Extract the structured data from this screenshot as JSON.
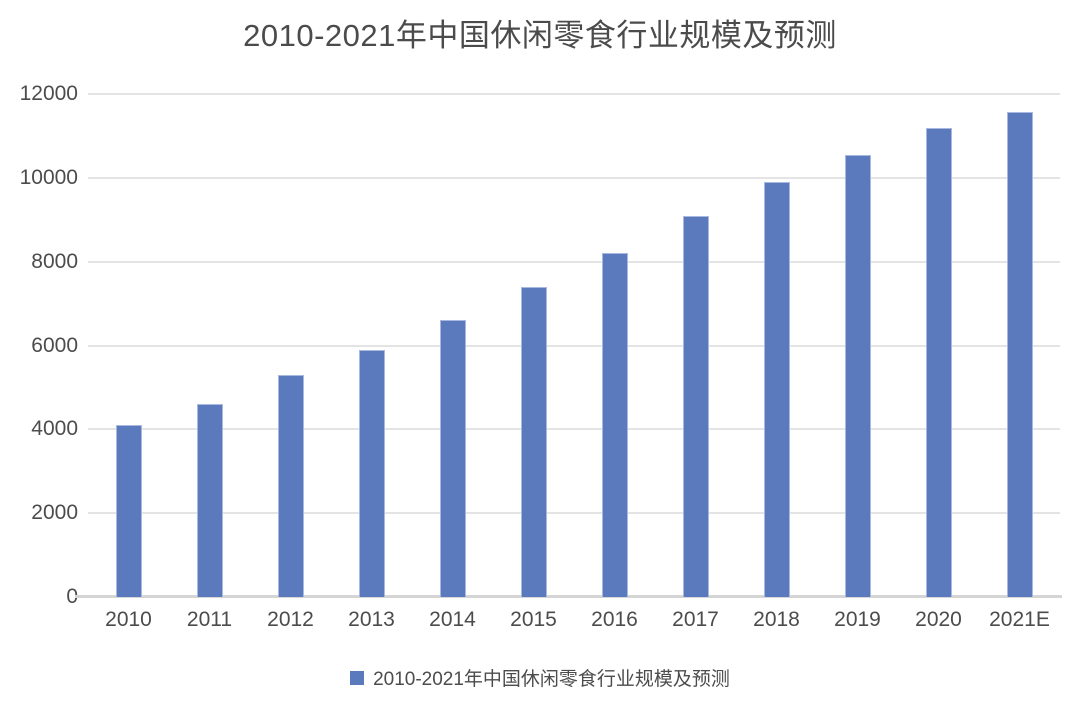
{
  "chart_data": {
    "type": "bar",
    "title": "2010-2021年中国休闲零食行业规模及预测",
    "series_name": "2010-2021年中国休闲零食行业规模及预测",
    "categories": [
      "2010",
      "2011",
      "2012",
      "2013",
      "2014",
      "2015",
      "2016",
      "2017",
      "2018",
      "2019",
      "2020",
      "2021E"
    ],
    "values": [
      4100,
      4600,
      5300,
      5900,
      6600,
      7400,
      8200,
      9100,
      9900,
      10556,
      11200,
      11562
    ],
    "xlabel": "",
    "ylabel": "",
    "ylim": [
      0,
      12000
    ],
    "y_ticks": [
      0,
      2000,
      4000,
      6000,
      8000,
      10000,
      12000
    ],
    "grid": true,
    "legend_position": "bottom",
    "bar_color": "#5b7abd",
    "bar_border_color": "#a9b8de",
    "gridline_color": "#e4e4e4",
    "axis_line_color": "#d5d5d5",
    "text_color": "#4c4c4c",
    "background_color": "#ffffff"
  }
}
